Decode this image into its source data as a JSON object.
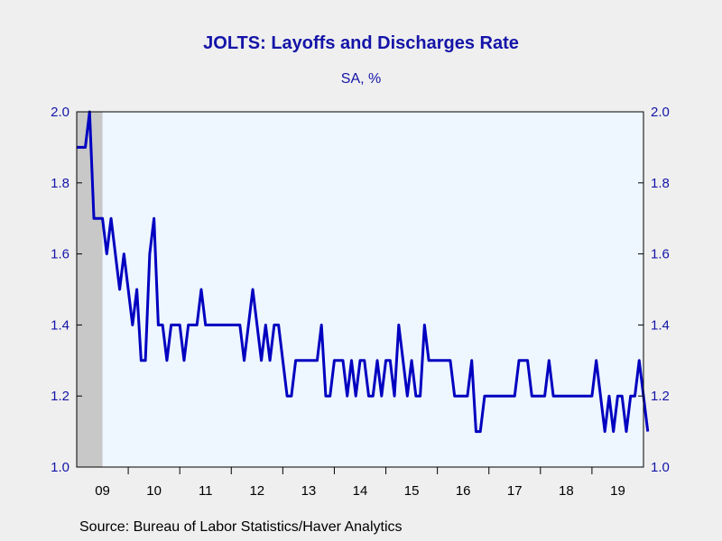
{
  "title": "JOLTS: Layoffs and Discharges Rate",
  "subtitle": "SA, %",
  "source": "Source:  Bureau of Labor Statistics/Haver Analytics",
  "colors": {
    "line": "#0000c0",
    "title": "#1414a8",
    "plot_background": "#eef6ff",
    "recession_shade": "#c8c8c8",
    "page_background": "#efefef"
  },
  "chart_data": {
    "type": "line",
    "title": "JOLTS: Layoffs and Discharges Rate",
    "subtitle": "SA, %",
    "xlabel": "",
    "ylabel": "",
    "frequency": "monthly",
    "x_start": "2009-01",
    "x_range": [
      "2009-01",
      "2019-12"
    ],
    "x_tick_labels": [
      "09",
      "10",
      "11",
      "12",
      "13",
      "14",
      "15",
      "16",
      "17",
      "18",
      "19"
    ],
    "ylim": [
      1.0,
      2.0
    ],
    "y_ticks": [
      1.0,
      1.2,
      1.4,
      1.6,
      1.8,
      2.0
    ],
    "y_tick_labels": [
      "1.0",
      "1.2",
      "1.4",
      "1.6",
      "1.8",
      "2.0"
    ],
    "dual_y_axis": true,
    "grid": false,
    "shaded_periods": [
      {
        "label": "recession",
        "start": "2009-01",
        "end": "2009-06"
      }
    ],
    "series": [
      {
        "values": [
          1.9,
          1.9,
          1.9,
          2.0,
          1.7,
          1.7,
          1.7,
          1.6,
          1.7,
          1.6,
          1.5,
          1.6,
          1.5,
          1.4,
          1.5,
          1.3,
          1.3,
          1.6,
          1.7,
          1.4,
          1.4,
          1.3,
          1.4,
          1.4,
          1.4,
          1.3,
          1.4,
          1.4,
          1.4,
          1.5,
          1.4,
          1.4,
          1.4,
          1.4,
          1.4,
          1.4,
          1.4,
          1.4,
          1.4,
          1.3,
          1.4,
          1.5,
          1.4,
          1.3,
          1.4,
          1.3,
          1.4,
          1.4,
          1.3,
          1.2,
          1.2,
          1.3,
          1.3,
          1.3,
          1.3,
          1.3,
          1.3,
          1.4,
          1.2,
          1.2,
          1.3,
          1.3,
          1.3,
          1.2,
          1.3,
          1.2,
          1.3,
          1.3,
          1.2,
          1.2,
          1.3,
          1.2,
          1.3,
          1.3,
          1.2,
          1.4,
          1.3,
          1.2,
          1.3,
          1.2,
          1.2,
          1.4,
          1.3,
          1.3,
          1.3,
          1.3,
          1.3,
          1.3,
          1.2,
          1.2,
          1.2,
          1.2,
          1.3,
          1.1,
          1.1,
          1.2,
          1.2,
          1.2,
          1.2,
          1.2,
          1.2,
          1.2,
          1.2,
          1.3,
          1.3,
          1.3,
          1.2,
          1.2,
          1.2,
          1.2,
          1.3,
          1.2,
          1.2,
          1.2,
          1.2,
          1.2,
          1.2,
          1.2,
          1.2,
          1.2,
          1.2,
          1.3,
          1.2,
          1.1,
          1.2,
          1.1,
          1.2,
          1.2,
          1.1,
          1.2,
          1.2,
          1.3,
          1.2,
          1.1
        ]
      }
    ]
  }
}
